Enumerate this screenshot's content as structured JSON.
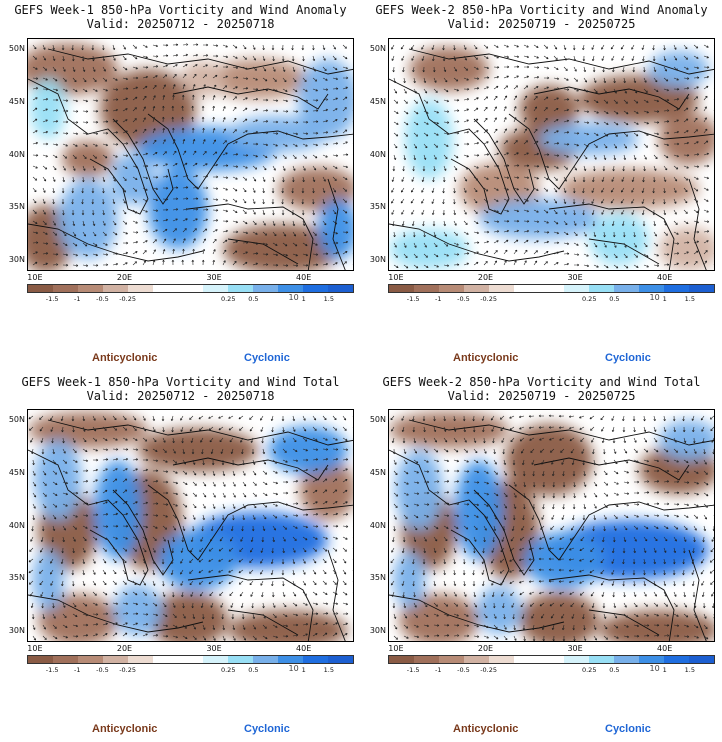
{
  "colorbar": {
    "ticks": [
      "-1.5",
      "-1",
      "-0.5",
      "-0.25",
      "0.25",
      "0.5",
      "1",
      "1.5"
    ],
    "ref_label": "10",
    "colors": [
      "#8a5b45",
      "#a0705b",
      "#b78b76",
      "#d1b2a3",
      "#eddcd2",
      "#ffffff",
      "#ffffff",
      "#d6f3fb",
      "#98dff5",
      "#78b0ea",
      "#3d8fe6",
      "#1f6ee0",
      "#1c5fd1"
    ]
  },
  "legend": {
    "anticyclonic": "Anticyclonic",
    "cyclonic": "Cyclonic",
    "anticyclonic_color": "#7a3a1c",
    "cyclonic_color": "#1f66d6"
  },
  "axes": {
    "lat_labels": [
      "50N",
      "45N",
      "40N",
      "35N",
      "30N"
    ],
    "lon_labels": [
      "10E",
      "20E",
      "30E",
      "40E"
    ]
  },
  "panels": [
    {
      "title": "GEFS Week-1 850-hPa Vorticity and Wind Anomaly",
      "valid": "Valid: 20250712 - 20250718"
    },
    {
      "title": "GEFS Week-2 850-hPa Vorticity and Wind Anomaly",
      "valid": "Valid: 20250719 - 20250725"
    },
    {
      "title": "GEFS Week-1 850-hPa Vorticity and Wind Total",
      "valid": "Valid: 20250712 - 20250718"
    },
    {
      "title": "GEFS Week-2 850-hPa Vorticity and Wind Total",
      "valid": "Valid: 20250719 - 20250725"
    }
  ]
}
